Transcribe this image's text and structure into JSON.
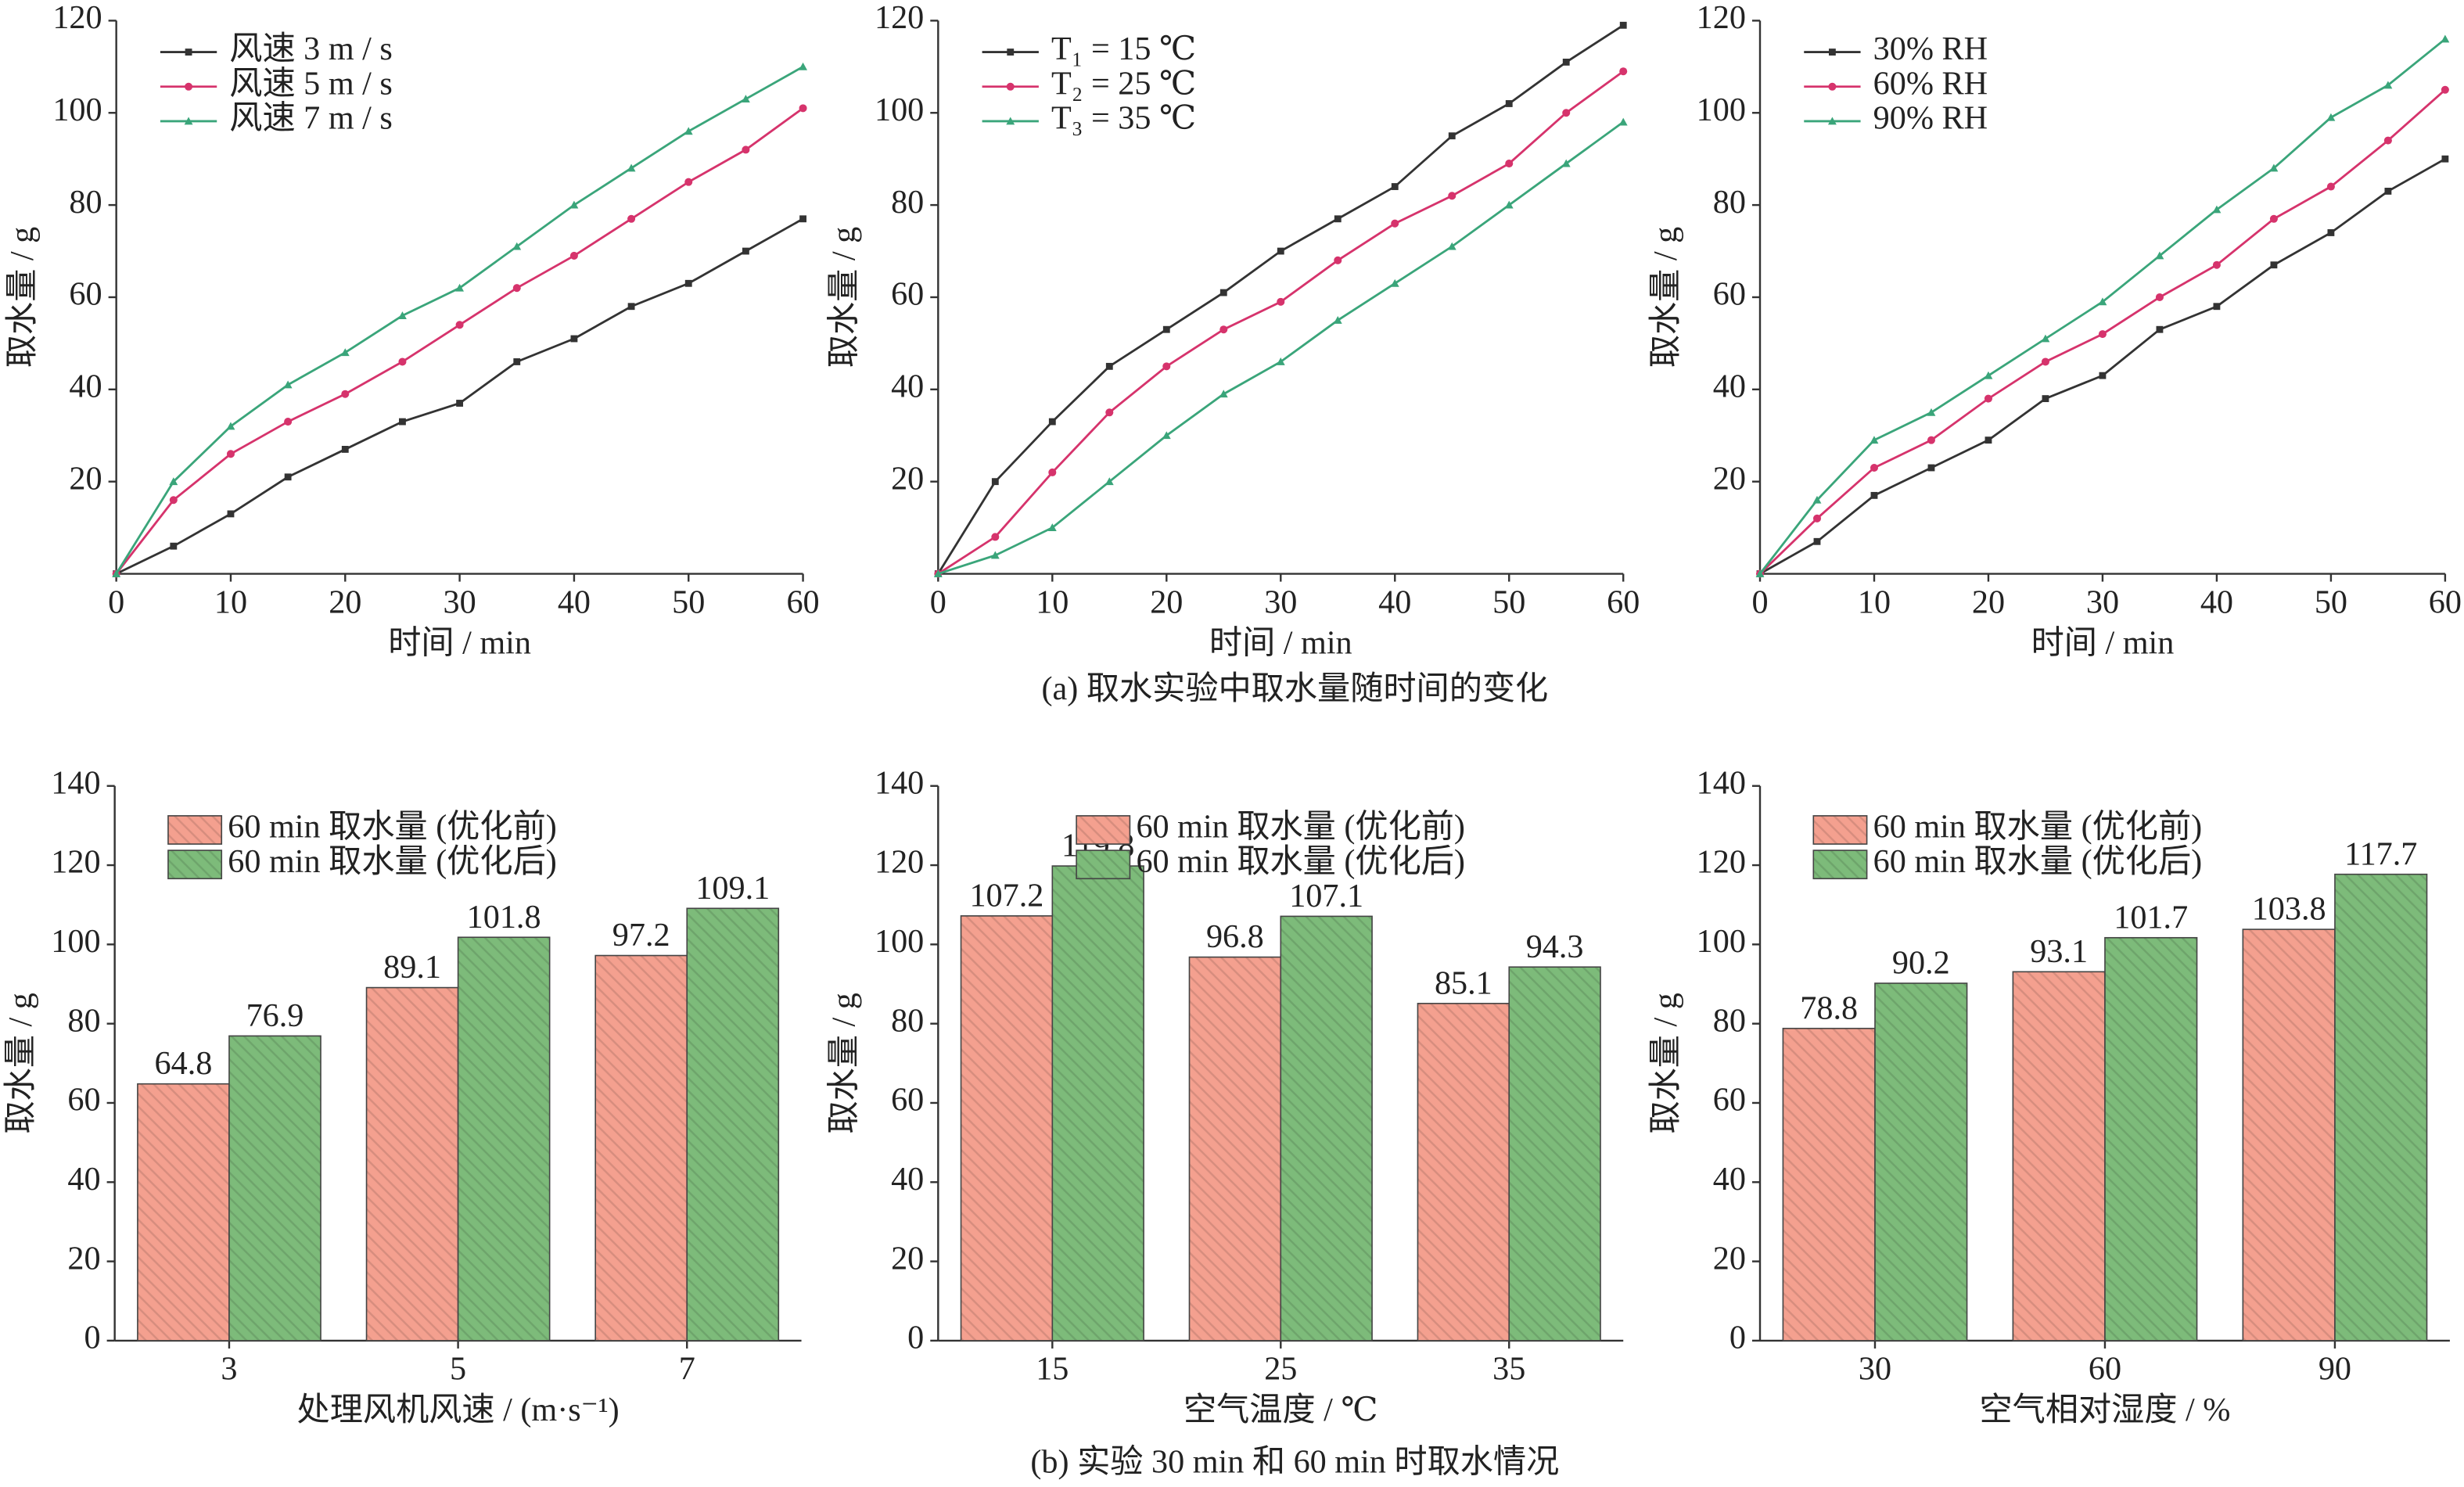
{
  "captions": [
    "(a) 取水实验中取水量随时间的变化",
    "(b) 实验 30 min 和 60 min 时取水情况"
  ],
  "chart_data": [
    {
      "type": "line",
      "x_label": "时间 / min",
      "y_label": "取水量 / g",
      "x": [
        0,
        5,
        10,
        15,
        20,
        25,
        30,
        35,
        40,
        45,
        50,
        55,
        60
      ],
      "series": [
        {
          "name": "风速 3 m / s",
          "color": "#333333",
          "values": [
            0,
            6,
            13,
            21,
            27,
            33,
            37,
            46,
            51,
            58,
            63,
            70,
            77
          ]
        },
        {
          "name": "风速 5 m / s",
          "color": "#d6336c",
          "values": [
            0,
            16,
            26,
            33,
            39,
            46,
            54,
            62,
            69,
            77,
            85,
            92,
            101
          ]
        },
        {
          "name": "风速 7 m / s",
          "color": "#3aa57a",
          "values": [
            0,
            20,
            32,
            41,
            48,
            56,
            62,
            71,
            80,
            88,
            96,
            103,
            110
          ]
        }
      ],
      "xlim": [
        0,
        60
      ],
      "xticks": [
        0,
        10,
        20,
        30,
        40,
        50,
        60
      ],
      "ylim": [
        0,
        120
      ],
      "yticks": [
        20,
        40,
        60,
        80,
        100,
        120
      ],
      "legend": "upper left"
    },
    {
      "type": "line",
      "x_label": "时间 / min",
      "y_label": "取水量 / g",
      "x": [
        0,
        5,
        10,
        15,
        20,
        25,
        30,
        35,
        40,
        45,
        50,
        55,
        60
      ],
      "series": [
        {
          "name": "T₁ = 15 ℃",
          "color": "#333333",
          "values": [
            0,
            20,
            33,
            45,
            53,
            61,
            70,
            77,
            84,
            95,
            102,
            111,
            119
          ]
        },
        {
          "name": "T₂ = 25 ℃",
          "color": "#d6336c",
          "values": [
            0,
            8,
            22,
            35,
            45,
            53,
            59,
            68,
            76,
            82,
            89,
            100,
            109
          ]
        },
        {
          "name": "T₃ = 35 ℃",
          "color": "#3aa57a",
          "values": [
            0,
            4,
            10,
            20,
            30,
            39,
            46,
            55,
            63,
            71,
            80,
            89,
            98
          ]
        }
      ],
      "xlim": [
        0,
        60
      ],
      "xticks": [
        0,
        10,
        20,
        30,
        40,
        50,
        60
      ],
      "ylim": [
        0,
        120
      ],
      "yticks": [
        20,
        40,
        60,
        80,
        100,
        120
      ],
      "legend": "upper left"
    },
    {
      "type": "line",
      "x_label": "时间 / min",
      "y_label": "取水量 / g",
      "x": [
        0,
        5,
        10,
        15,
        20,
        25,
        30,
        35,
        40,
        45,
        50,
        55,
        60
      ],
      "series": [
        {
          "name": "30% RH",
          "color": "#333333",
          "values": [
            0,
            7,
            17,
            23,
            29,
            38,
            43,
            53,
            58,
            67,
            74,
            83,
            90
          ]
        },
        {
          "name": "60% RH",
          "color": "#d6336c",
          "values": [
            0,
            12,
            23,
            29,
            38,
            46,
            52,
            60,
            67,
            77,
            84,
            94,
            105
          ]
        },
        {
          "name": "90% RH",
          "color": "#3aa57a",
          "values": [
            0,
            16,
            29,
            35,
            43,
            51,
            59,
            69,
            79,
            88,
            99,
            106,
            116
          ]
        }
      ],
      "xlim": [
        0,
        60
      ],
      "xticks": [
        0,
        10,
        20,
        30,
        40,
        50,
        60
      ],
      "ylim": [
        0,
        120
      ],
      "yticks": [
        20,
        40,
        60,
        80,
        100,
        120
      ],
      "legend": "upper left"
    },
    {
      "type": "bar",
      "x_label": "处理风机风速 / (m·s⁻¹)",
      "y_label": "取水量 / g",
      "categories": [
        "3",
        "5",
        "7"
      ],
      "series": [
        {
          "name": "60 min 取水量 (优化前)",
          "color": "#f4a08f",
          "values": [
            64.8,
            89.1,
            97.2
          ]
        },
        {
          "name": "60 min 取水量 (优化后)",
          "color": "#7dbb7a",
          "values": [
            76.9,
            101.8,
            109.1
          ]
        }
      ],
      "ylim": [
        0,
        140
      ],
      "yticks": [
        0,
        20,
        40,
        60,
        80,
        100,
        120,
        140
      ],
      "legend": "upper left"
    },
    {
      "type": "bar",
      "x_label": "空气温度 / ℃",
      "y_label": "取水量 / g",
      "categories": [
        "15",
        "25",
        "35"
      ],
      "series": [
        {
          "name": "60 min 取水量 (优化前)",
          "color": "#f4a08f",
          "values": [
            107.2,
            96.8,
            85.1
          ]
        },
        {
          "name": "60 min 取水量 (优化后)",
          "color": "#7dbb7a",
          "values": [
            119.8,
            107.1,
            94.3
          ]
        }
      ],
      "ylim": [
        0,
        140
      ],
      "yticks": [
        0,
        20,
        40,
        60,
        80,
        100,
        120,
        140
      ],
      "legend": "upper center"
    },
    {
      "type": "bar",
      "x_label": "空气相对湿度 / %",
      "y_label": "取水量 / g",
      "categories": [
        "30",
        "60",
        "90"
      ],
      "series": [
        {
          "name": "60 min 取水量 (优化前)",
          "color": "#f4a08f",
          "values": [
            78.8,
            93.1,
            103.8
          ]
        },
        {
          "name": "60 min 取水量 (优化后)",
          "color": "#7dbb7a",
          "values": [
            90.2,
            101.7,
            117.7
          ]
        }
      ],
      "ylim": [
        0,
        140
      ],
      "yticks": [
        0,
        20,
        40,
        60,
        80,
        100,
        120,
        140
      ],
      "legend": "upper left"
    }
  ]
}
